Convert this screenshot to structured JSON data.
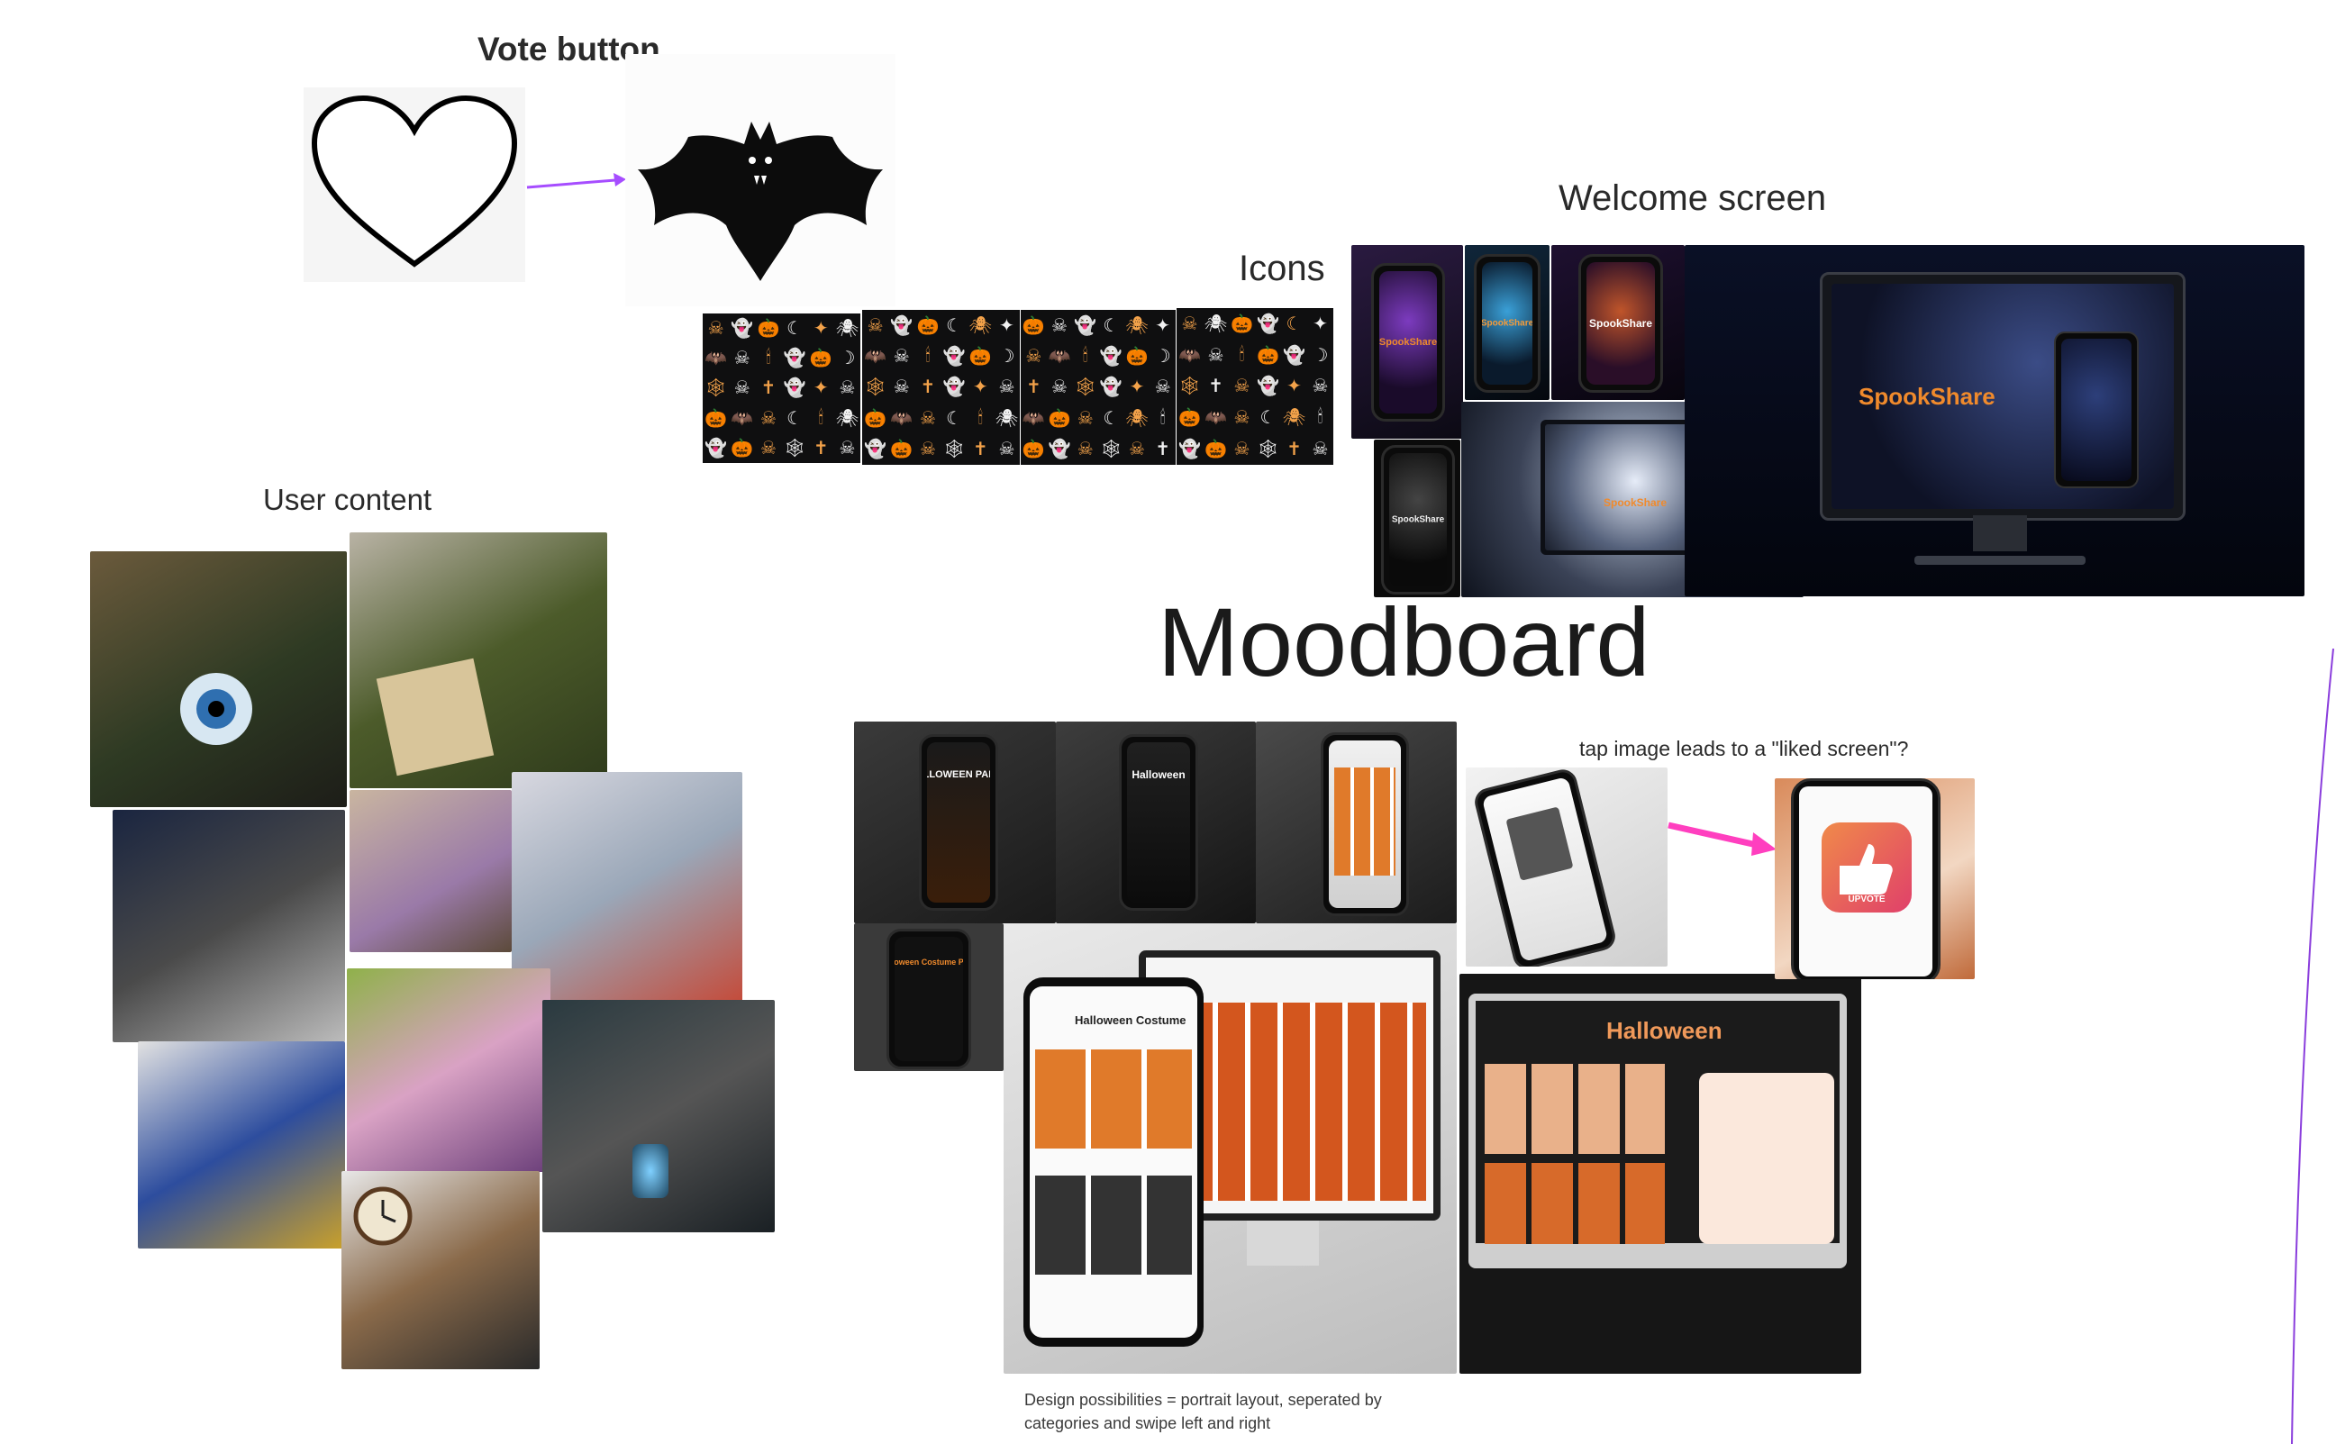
{
  "canvas": {
    "title": "Moodboard",
    "sections": {
      "vote_button": "Vote button",
      "icons": "Icons",
      "welcome_screen": "Welcome screen",
      "user_content": "User content",
      "liked_note": "tap image leads to a \"liked screen\"?",
      "design_note_line1": "Design possibilities = portrait layout, seperated by",
      "design_note_line2": "categories and swipe left and right"
    }
  },
  "images": {
    "halloween_party": "HALLOWEEN PARTY",
    "halloween": "Halloween",
    "spookshare": "SpookShare",
    "halloween_costume_party": "Halloween Costume Party",
    "upvote": "UPVOTE",
    "halloween_costume": "Halloween Costume"
  },
  "colors": {
    "accent_arrow_purple": "#a64dff",
    "accent_arrow_pink": "#ff3fbf",
    "halloween_orange": "#f08a2c",
    "night_blue": "#1a2350"
  }
}
